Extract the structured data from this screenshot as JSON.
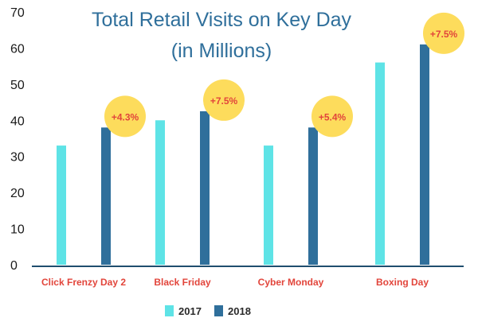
{
  "colors": {
    "series_2017": "#5ee3e6",
    "series_2018": "#2f6f9b",
    "title": "#2f6f9b",
    "category_label": "#e2453b",
    "badge_fill": "#fddc5c",
    "badge_text": "#e2453b",
    "axis": "#1f4e6e"
  },
  "chart_data": {
    "type": "bar",
    "title": [
      "Total Retail Visits on Key Day",
      "(in Millions)"
    ],
    "xlabel": "",
    "ylabel": "",
    "ylim": [
      0,
      70
    ],
    "yticks": [
      0,
      10,
      20,
      30,
      40,
      50,
      60,
      70
    ],
    "categories": [
      "Click Frenzy Day 2",
      "Black Friday",
      "Cyber Monday",
      "Boxing Day"
    ],
    "series": [
      {
        "name": "2017",
        "values": [
          33,
          40,
          33,
          56
        ]
      },
      {
        "name": "2018",
        "values": [
          38,
          42.5,
          38,
          61
        ]
      }
    ],
    "annotations": [
      "+4.3%",
      "+7.5%",
      "+5.4%",
      "+7.5%"
    ],
    "legend": {
      "position": "bottom-center"
    },
    "grid": false
  }
}
